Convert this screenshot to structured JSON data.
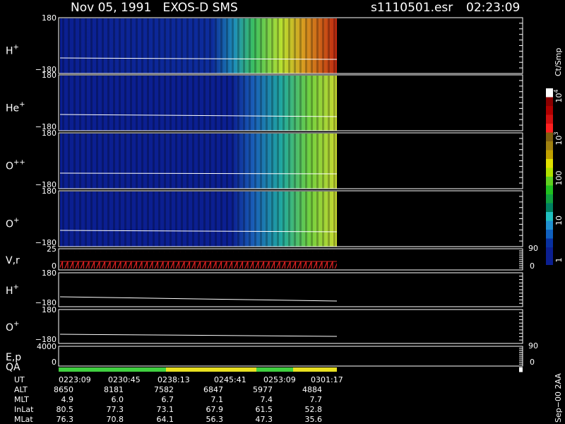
{
  "header": {
    "title": "Nov 05, 1991   EXOS-D SMS",
    "file": "s1110501.esr",
    "time": "02:23:09"
  },
  "panels": [
    {
      "label": "H",
      "sup": "+",
      "top": "180",
      "bottom": "−180"
    },
    {
      "label": "He",
      "sup": "+",
      "top": "180",
      "bottom": "−180"
    },
    {
      "label": "O",
      "sup": "++",
      "top": "180",
      "bottom": "−180"
    },
    {
      "label": "O",
      "sup": "+",
      "top": "180",
      "bottom": "−180"
    },
    {
      "label": "V,r",
      "top": "25",
      "bottom": "0",
      "right_top": "90",
      "right_bottom": "0"
    },
    {
      "label": "H",
      "sup": "+",
      "top": "180",
      "bottom": "−180"
    },
    {
      "label": "O",
      "sup": "+",
      "top": "180",
      "bottom": "−180"
    },
    {
      "label": "E,p",
      "top": "4000",
      "bottom": "0",
      "right_top": "90",
      "right_bottom": "0"
    },
    {
      "label": "QA"
    }
  ],
  "colorbar": {
    "unit": "Ct/Smp",
    "labels": [
      {
        "base": "10",
        "exp": "4"
      },
      {
        "base": "10",
        "exp": "3"
      },
      "100",
      "10",
      "1"
    ]
  },
  "table": {
    "rows": [
      [
        "UT",
        "0223:09",
        "0230:45",
        "0238:13",
        "0245:41",
        "0253:09",
        "0301:17"
      ],
      [
        "ALT",
        "8650",
        "8181",
        "7582",
        "6847",
        "5977",
        "4884"
      ],
      [
        "MLT",
        "4.9",
        "6.0",
        "6.7",
        "7.1",
        "7.4",
        "7.7"
      ],
      [
        "InLat",
        "80.5",
        "77.3",
        "73.1",
        "67.9",
        "61.5",
        "52.8"
      ],
      [
        "MLat",
        "76.3",
        "70.8",
        "64.1",
        "56.3",
        "47.3",
        "35.6"
      ]
    ]
  },
  "footer_note": "Sep−00 2AA"
}
